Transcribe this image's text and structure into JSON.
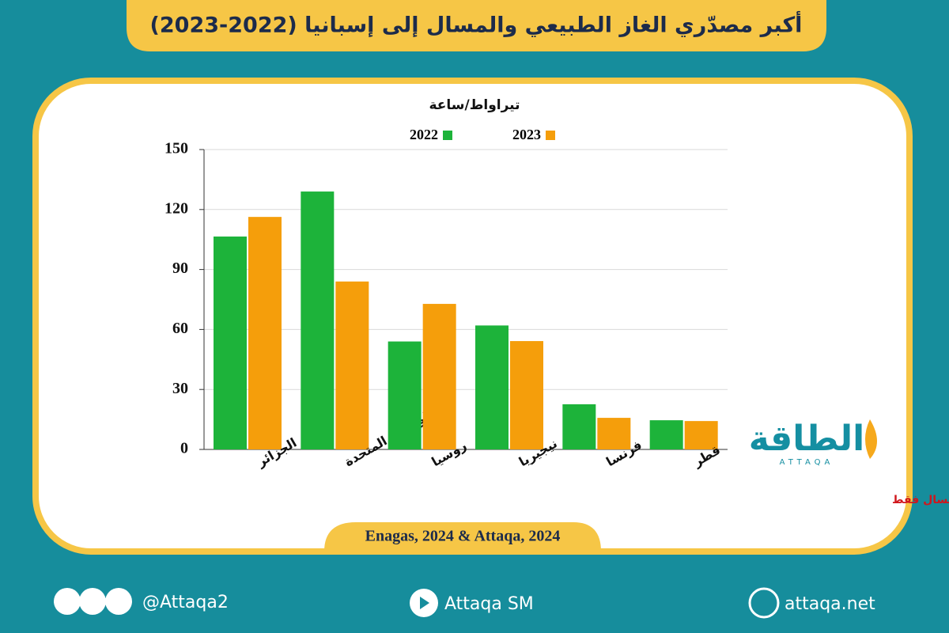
{
  "chart_data": {
    "type": "bar",
    "title": "أكبر مصدّري الغاز الطبيعي والمسال إلى إسبانيا (2022-2023)",
    "y_label": "تيراواط/ساعة",
    "categories": [
      "الجزائر",
      "الولايات المتحدة",
      "روسيا",
      "نيجيريا",
      "فرنسا",
      "قطر"
    ],
    "series": [
      {
        "name": "2022",
        "color": "#1db33a",
        "values": [
          106.5,
          129,
          54,
          62,
          22.6,
          14.6
        ]
      },
      {
        "name": "2023",
        "color": "#f59e0b",
        "values": [
          116.3,
          84,
          72.8,
          54.2,
          15.8,
          14.2
        ]
      }
    ],
    "ylim": [
      0,
      150
    ],
    "yticks": [
      0,
      30,
      60,
      90,
      120,
      150
    ],
    "grid": true,
    "note": "*الواردات من الجزائر وفرنسا غاز طبيعي ومسال وباقي الدول غاز مسال فقط",
    "source": "Enagas, 2024 & Attaqa, 2024"
  },
  "logo": {
    "name": "الطاقة",
    "latin": "ATTAQA"
  },
  "footer": {
    "social": "@Attaqa2",
    "youtube": "Attaqa SM",
    "website": "attaqa.net"
  }
}
